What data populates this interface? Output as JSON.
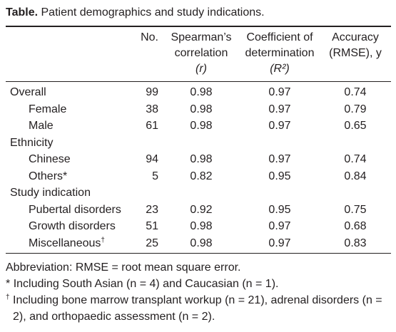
{
  "caption": {
    "label": "Table.",
    "text": "Patient demographics and study indications."
  },
  "headers": [
    {
      "lines": [
        "No."
      ]
    },
    {
      "lines": [
        "Spearman’s",
        "correlation",
        "(r)"
      ]
    },
    {
      "lines": [
        "Coefficient of",
        "determination",
        "(R²)"
      ]
    },
    {
      "lines": [
        "Accuracy",
        "(RMSE), y"
      ]
    }
  ],
  "groups": [
    {
      "label": "Overall",
      "values": [
        99,
        0.98,
        0.97,
        0.74
      ],
      "rows": [
        {
          "label": "Female",
          "values": [
            38,
            0.98,
            0.97,
            0.79
          ]
        },
        {
          "label": "Male",
          "values": [
            61,
            0.98,
            0.97,
            0.65
          ]
        }
      ]
    },
    {
      "label": "Ethnicity",
      "rows": [
        {
          "label": "Chinese",
          "values": [
            94,
            0.98,
            0.97,
            0.74
          ]
        },
        {
          "label": "Others*",
          "values": [
            5,
            0.82,
            0.95,
            0.84
          ]
        }
      ]
    },
    {
      "label": "Study indication",
      "rows": [
        {
          "label": "Pubertal disorders",
          "values": [
            23,
            0.92,
            0.95,
            0.75
          ]
        },
        {
          "label": "Growth disorders",
          "values": [
            51,
            0.98,
            0.97,
            0.68
          ]
        },
        {
          "label": "Miscellaneous",
          "note": "†",
          "values": [
            25,
            0.98,
            0.97,
            0.83
          ]
        }
      ]
    }
  ],
  "footnotes": [
    {
      "text": "Abbreviation: RMSE = root mean square error."
    },
    {
      "mark": "*",
      "text": "Including South Asian (n = 4) and Caucasian (n = 1)."
    },
    {
      "mark": "†",
      "text": "Including bone marrow transplant workup (n = 21), adrenal disorders (n = 2), and orthopaedic assessment (n = 2)."
    }
  ]
}
